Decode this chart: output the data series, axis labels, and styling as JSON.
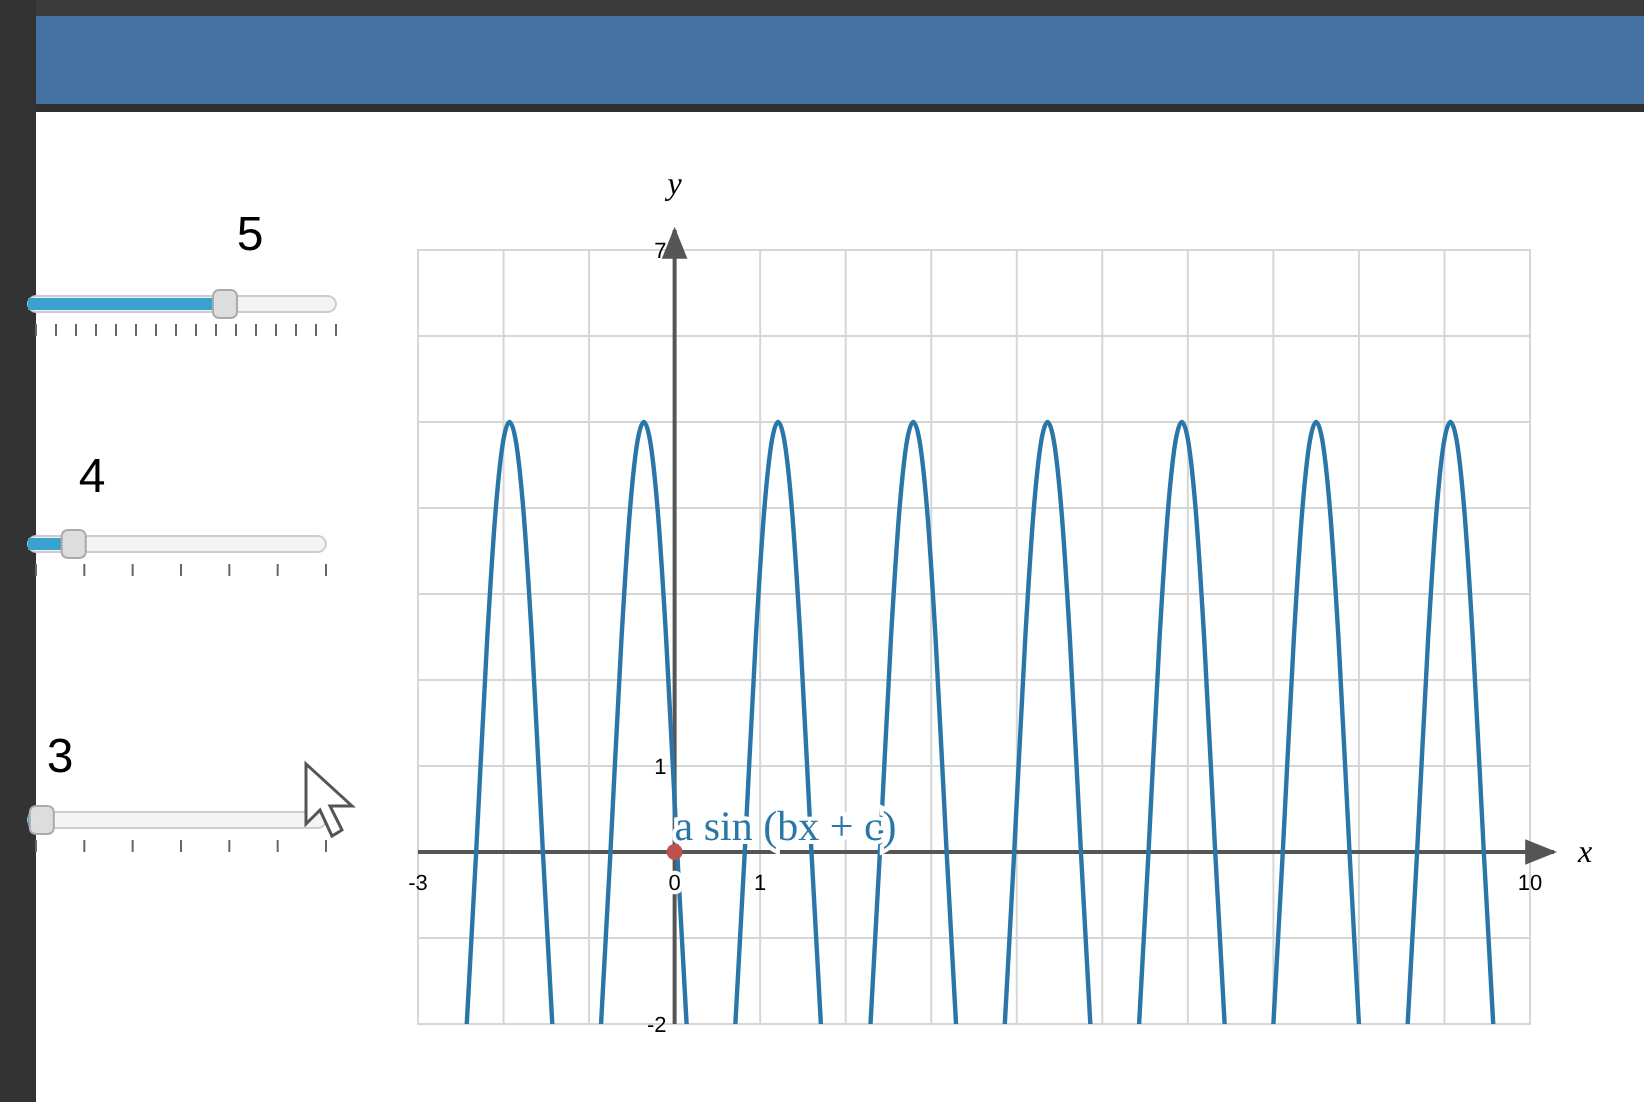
{
  "chart_data": {
    "type": "line",
    "xlabel": "x",
    "ylabel": "y",
    "xlim": [
      -3,
      10
    ],
    "ylim": [
      -2,
      7
    ],
    "xticks": [
      -3,
      {
        "value": -2,
        "label": null
      },
      {
        "value": -1,
        "label": null
      },
      0,
      1,
      {
        "value": 2,
        "label": null
      },
      {
        "value": 3,
        "label": null
      },
      {
        "value": 4,
        "label": null
      },
      {
        "value": 5,
        "label": null
      },
      {
        "value": 6,
        "label": null
      },
      {
        "value": 7,
        "label": null
      },
      {
        "value": 8,
        "label": null
      },
      {
        "value": 9,
        "label": null
      },
      10
    ],
    "yticks": [
      -2,
      {
        "value": -1,
        "label": null
      },
      {
        "value": 0,
        "label": null
      },
      1,
      {
        "value": 2,
        "label": null
      },
      {
        "value": 3,
        "label": null
      },
      {
        "value": 4,
        "label": null
      },
      {
        "value": 5,
        "label": null
      },
      {
        "value": 6,
        "label": null
      },
      7
    ],
    "grid": true,
    "series": [
      {
        "color": "#2b76a8",
        "x": [
          -2.43,
          -2.32,
          -2.19,
          -2.09,
          -2.0,
          -1.93,
          -1.86,
          -1.77,
          -1.67,
          -1.54,
          -1.43,
          -1.14,
          -0.86,
          -0.75,
          -0.62,
          -0.52,
          -0.43,
          -0.36,
          -0.29,
          -0.2,
          -0.1,
          0.03,
          0.14,
          0.43,
          0.71,
          0.82,
          0.95,
          1.05,
          1.14,
          1.21,
          1.28,
          1.37,
          1.47,
          1.6,
          1.71,
          2.0,
          2.29,
          2.4,
          2.53,
          2.63,
          2.72,
          2.79,
          2.86,
          2.95,
          3.05,
          3.18,
          3.29,
          3.57,
          3.86,
          3.97,
          4.1,
          4.2,
          4.29,
          4.36,
          4.43,
          4.52,
          4.62,
          4.75,
          4.86,
          5.14,
          5.43,
          5.54,
          5.67,
          5.77,
          5.86,
          5.93,
          6.0,
          6.09,
          6.19,
          6.32,
          6.43,
          6.71,
          7.0,
          7.11,
          7.24,
          7.34,
          7.43,
          7.5,
          7.57,
          7.66,
          7.76,
          7.89,
          8.0,
          8.28,
          8.57,
          8.68,
          8.81,
          8.91,
          9.0,
          9.07,
          9.14,
          9.23,
          9.33,
          9.46,
          9.57
        ],
        "values": [
          -2,
          0,
          2.5,
          4,
          4.8,
          5,
          4.8,
          4,
          2.5,
          0,
          -2,
          null,
          -2,
          0,
          2.5,
          4,
          4.8,
          5,
          4.8,
          4,
          2.5,
          0,
          -2,
          null,
          -2,
          0,
          2.5,
          4,
          4.8,
          5,
          4.8,
          4,
          2.5,
          0,
          -2,
          null,
          -2,
          0,
          2.5,
          4,
          4.8,
          5,
          4.8,
          4,
          2.5,
          0,
          -2,
          null,
          -2,
          0,
          2.5,
          4,
          4.8,
          5,
          4.8,
          4,
          2.5,
          0,
          -2,
          null,
          -2,
          0,
          2.5,
          4,
          4.8,
          5,
          4.8,
          4,
          2.5,
          0,
          -2,
          null,
          -2,
          0,
          2.5,
          4,
          4.8,
          5,
          4.8,
          4,
          2.5,
          0,
          -2,
          null,
          -2,
          0,
          2.5,
          4,
          4.8,
          5,
          4.8,
          4,
          2.5,
          0,
          -2
        ]
      },
      {
        "type": "scatter",
        "color": "#c0504d",
        "x": [
          0
        ],
        "values": [
          0
        ]
      }
    ],
    "annotations": [
      {
        "text": "a sin (bx + c)",
        "x": 0,
        "y": 0
      },
      "5",
      "4",
      "3"
    ]
  }
}
